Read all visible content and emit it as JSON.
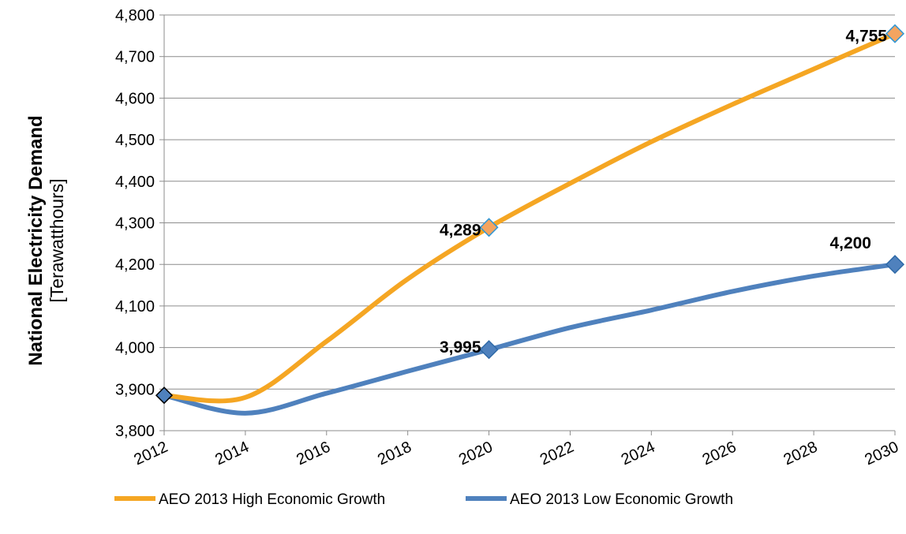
{
  "chart_data": {
    "type": "line",
    "ylabel": "National Electricity Demand",
    "ylabel_unit": "[Terawatthours]",
    "xlabel": "",
    "title": "",
    "x": [
      2012,
      2014,
      2016,
      2018,
      2020,
      2022,
      2024,
      2026,
      2028,
      2030
    ],
    "x_tick_labels": [
      "2012",
      "2014",
      "2016",
      "2018",
      "2020",
      "2022",
      "2024",
      "2026",
      "2028",
      "2030"
    ],
    "ylim": [
      3800,
      4800
    ],
    "y_ticks": [
      3800,
      3900,
      4000,
      4100,
      4200,
      4300,
      4400,
      4500,
      4600,
      4700,
      4800
    ],
    "y_tick_labels": [
      "3,800",
      "3,900",
      "4,000",
      "4,100",
      "4,200",
      "4,300",
      "4,400",
      "4,500",
      "4,600",
      "4,700",
      "4,800"
    ],
    "grid": "horizontal",
    "legend_position": "bottom",
    "series": [
      {
        "name": "AEO 2013 High Economic Growth",
        "color": "#F5A623",
        "marker_color": "#F4A460",
        "values": [
          3885,
          3880,
          4015,
          4165,
          4289,
          4395,
          4495,
          4585,
          4670,
          4755
        ],
        "markers": [
          {
            "x": 2020,
            "y": 4289,
            "label": "4,289"
          },
          {
            "x": 2030,
            "y": 4755,
            "label": "4,755"
          }
        ]
      },
      {
        "name": "AEO 2013 Low Economic Growth",
        "color": "#4F81BD",
        "marker_color": "#4F81BD",
        "values": [
          3885,
          3842,
          3890,
          3943,
          3995,
          4048,
          4090,
          4135,
          4172,
          4200
        ],
        "markers": [
          {
            "x": 2020,
            "y": 3995,
            "label": "3,995"
          },
          {
            "x": 2030,
            "y": 4200,
            "label": "4,200"
          }
        ]
      }
    ],
    "start_marker": {
      "x": 2012,
      "y": 3885
    }
  }
}
